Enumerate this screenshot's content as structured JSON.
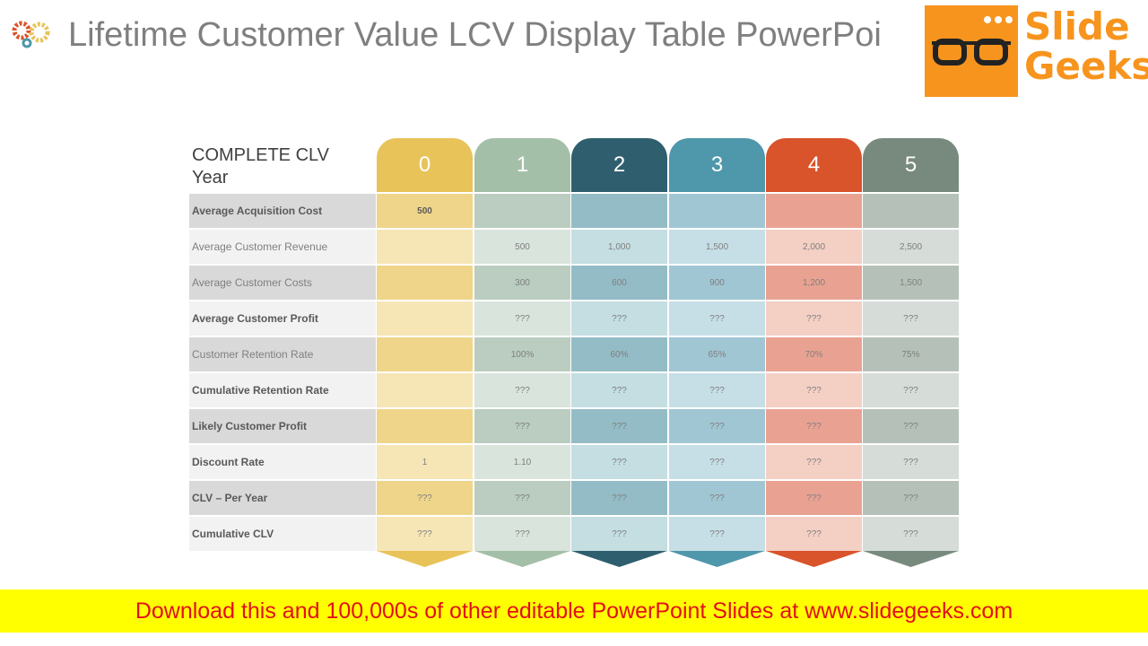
{
  "header": {
    "title": "Lifetime Customer Value LCV Display Table PowerPoi",
    "logo": [
      "Slide",
      "Geeks"
    ]
  },
  "table": {
    "corner": [
      "COMPLETE CLV",
      "Year"
    ],
    "columns": [
      "0",
      "1",
      "2",
      "3",
      "4",
      "5"
    ],
    "rows": [
      [
        "Average Acquisition Cost",
        "500",
        null,
        null,
        null,
        null,
        null
      ],
      [
        "Average Customer Revenue",
        null,
        "500",
        "1,000",
        "1,500",
        "2,000",
        "2,500"
      ],
      [
        "Average Customer Costs",
        null,
        "300",
        "600",
        "900",
        "1,200",
        "1,500"
      ],
      [
        "Average Customer Profit",
        null,
        "???",
        "???",
        "???",
        "???",
        "???"
      ],
      [
        "Customer Retention Rate",
        null,
        "100%",
        "60%",
        "65%",
        "70%",
        "75%"
      ],
      [
        "Cumulative Retention Rate",
        null,
        "???",
        "???",
        "???",
        "???",
        "???"
      ],
      [
        "Likely Customer Profit",
        null,
        "???",
        "???",
        "???",
        "???",
        "???"
      ],
      [
        "Discount Rate",
        "1",
        "1.10",
        "???",
        "???",
        "???",
        "???"
      ],
      [
        "CLV – Per Year",
        "???",
        "???",
        "???",
        "???",
        "???",
        "???"
      ],
      [
        "Cumulative CLV",
        "???",
        "???",
        "???",
        "???",
        "???",
        "???"
      ]
    ]
  },
  "footer": {
    "banner": "Download this and 100,000s of other editable PowerPoint Slides at www.slidegeeks.com"
  }
}
